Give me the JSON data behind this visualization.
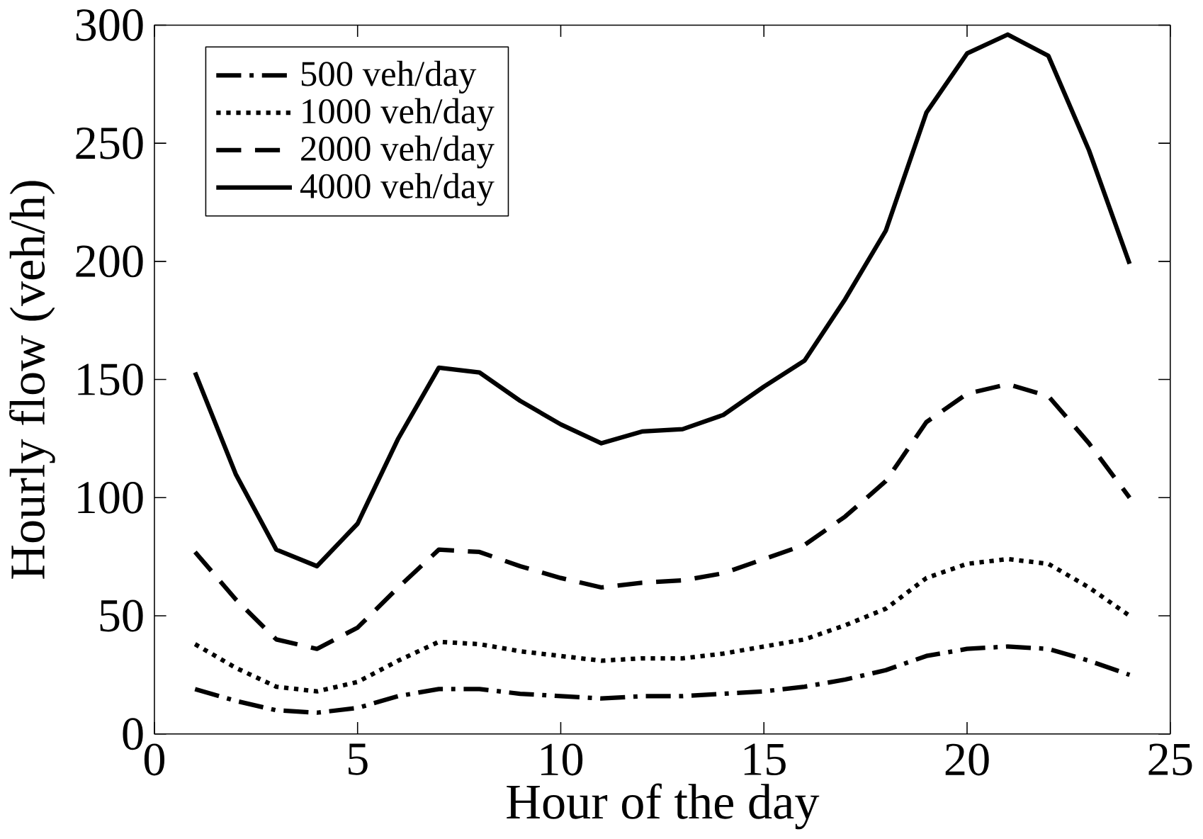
{
  "chart_data": {
    "type": "line",
    "xlabel": "Hour of the day",
    "ylabel": "Hourly flow (veh/h)",
    "x": [
      1,
      2,
      3,
      4,
      5,
      6,
      7,
      8,
      9,
      10,
      11,
      12,
      13,
      14,
      15,
      16,
      17,
      18,
      19,
      20,
      21,
      22,
      23,
      24
    ],
    "series": [
      {
        "name": "500 veh/day",
        "color": "#000000",
        "line_style": "dashdot",
        "values": [
          19,
          14,
          10,
          9,
          11,
          16,
          19,
          19,
          17,
          16,
          15,
          16,
          16,
          17,
          18,
          20,
          23,
          27,
          33,
          36,
          37,
          36,
          31,
          25
        ]
      },
      {
        "name": "1000 veh/day",
        "color": "#000000",
        "line_style": "dotted",
        "values": [
          38,
          28,
          20,
          18,
          22,
          31,
          39,
          38,
          35,
          33,
          31,
          32,
          32,
          34,
          37,
          40,
          46,
          53,
          66,
          72,
          74,
          72,
          62,
          50
        ]
      },
      {
        "name": "2000 veh/day",
        "color": "#000000",
        "line_style": "dashed",
        "values": [
          77,
          57,
          40,
          36,
          45,
          62,
          78,
          77,
          71,
          66,
          62,
          64,
          65,
          68,
          74,
          80,
          92,
          107,
          132,
          144,
          148,
          143,
          123,
          100
        ]
      },
      {
        "name": "4000 veh/day",
        "color": "#000000",
        "line_style": "solid",
        "values": [
          153,
          110,
          78,
          71,
          89,
          125,
          155,
          153,
          141,
          131,
          123,
          128,
          129,
          135,
          147,
          158,
          184,
          213,
          263,
          288,
          296,
          287,
          247,
          199
        ]
      }
    ],
    "xlim": [
      0,
      25
    ],
    "xticks": [
      0,
      5,
      10,
      15,
      20,
      25
    ],
    "ylim": [
      0,
      300
    ],
    "yticks": [
      0,
      50,
      100,
      150,
      200,
      250,
      300
    ],
    "grid": false,
    "legend": "top left",
    "marker": "none"
  }
}
